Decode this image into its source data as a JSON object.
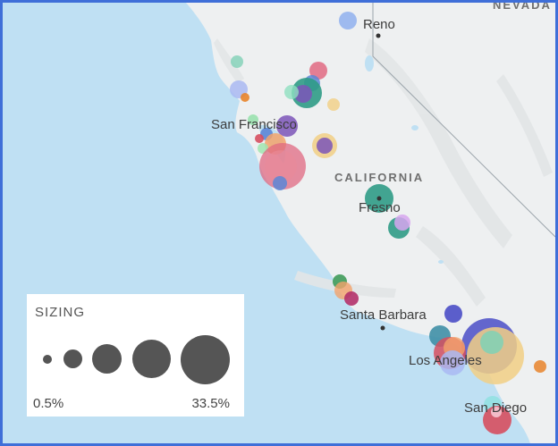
{
  "map": {
    "state_label": "CALIFORNIA",
    "neighbor_label": "NEVADA",
    "cities": {
      "reno": "Reno",
      "san_francisco": "San Francisco",
      "fresno": "Fresno",
      "santa_barbara": "Santa Barbara",
      "los_angeles": "Los Angeles",
      "san_diego": "San Diego"
    },
    "colors": {
      "water": "#bfe0f3",
      "land": "#eef0f1",
      "border_frame": "#3f6fd8"
    }
  },
  "legend": {
    "title": "SIZING",
    "min_label": "0.5%",
    "max_label": "33.5%",
    "dot_color": "#555555"
  },
  "bubbles": [
    {
      "name": "reno-bubble",
      "color": "#8fb0ee"
    },
    {
      "name": "sacramento-bubble-teal",
      "color": "#2f9b86"
    },
    {
      "name": "sacramento-bubble-purple",
      "color": "#7b55b8"
    },
    {
      "name": "san-jose-bubble",
      "color": "#e06a82"
    },
    {
      "name": "fresno-bubble",
      "color": "#2f9b86"
    },
    {
      "name": "los-angeles-bubble-blue",
      "color": "#4a4ec7"
    },
    {
      "name": "los-angeles-bubble-yellow",
      "color": "#f1cf85"
    },
    {
      "name": "san-diego-bubble",
      "color": "#d64f5f"
    }
  ]
}
